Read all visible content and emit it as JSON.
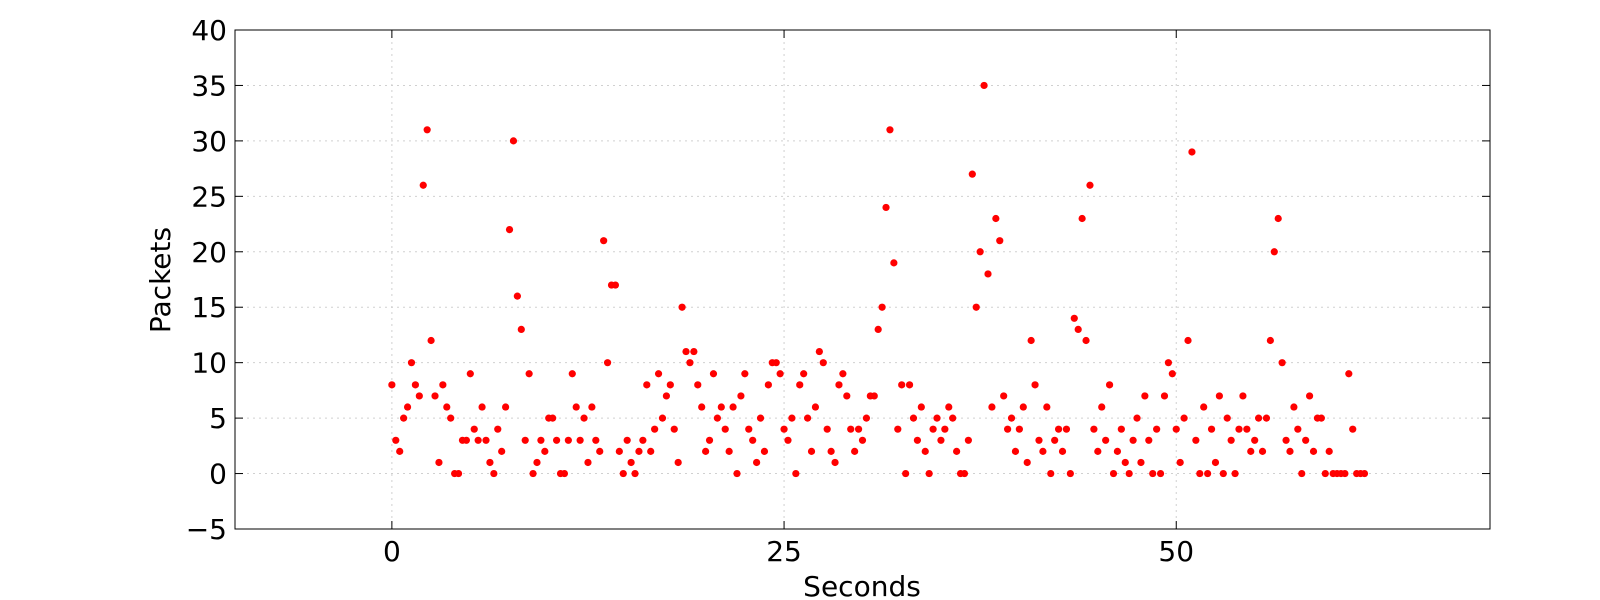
{
  "chart_data": {
    "type": "scatter",
    "x_label": "Seconds",
    "y_label": "Packets",
    "xlim": [
      -10,
      70
    ],
    "xticks": [
      0,
      25,
      50
    ],
    "ylim": [
      -5,
      40
    ],
    "yticks": [
      {
        "value": -5,
        "label": "−5"
      },
      0,
      5,
      10,
      15,
      20,
      25,
      30,
      35,
      40
    ],
    "grid": true,
    "series": [
      {
        "color": "#ff0000",
        "x": [
          0,
          0.25,
          0.5,
          0.75,
          1,
          1.25,
          1.5,
          1.75,
          2,
          2.25,
          2.5,
          2.75,
          3,
          3.25,
          3.5,
          3.75,
          4,
          4.25,
          4.5,
          4.75,
          5,
          5.25,
          5.5,
          5.75,
          6,
          6.25,
          6.5,
          6.75,
          7,
          7.25,
          7.5,
          7.75,
          8,
          8.25,
          8.5,
          8.75,
          9,
          9.25,
          9.5,
          9.75,
          10,
          10.25,
          10.5,
          10.75,
          11,
          11.25,
          11.5,
          11.75,
          12,
          12.25,
          12.5,
          12.75,
          13,
          13.25,
          13.5,
          13.75,
          14,
          14.25,
          14.5,
          14.75,
          15,
          15.25,
          15.5,
          15.75,
          16,
          16.25,
          16.5,
          16.75,
          17,
          17.25,
          17.5,
          17.75,
          18,
          18.25,
          18.5,
          18.75,
          19,
          19.25,
          19.5,
          19.75,
          20,
          20.25,
          20.5,
          20.75,
          21,
          21.25,
          21.5,
          21.75,
          22,
          22.25,
          22.5,
          22.75,
          23,
          23.25,
          23.5,
          23.75,
          24,
          24.25,
          24.5,
          24.75,
          25,
          25.25,
          25.5,
          25.75,
          26,
          26.25,
          26.5,
          26.75,
          27,
          27.25,
          27.5,
          27.75,
          28,
          28.25,
          28.5,
          28.75,
          29,
          29.25,
          29.5,
          29.75,
          30,
          30.25,
          30.5,
          30.75,
          31,
          31.25,
          31.5,
          31.75,
          32,
          32.25,
          32.5,
          32.75,
          33,
          33.25,
          33.5,
          33.75,
          34,
          34.25,
          34.5,
          34.75,
          35,
          35.25,
          35.5,
          35.75,
          36,
          36.25,
          36.5,
          36.75,
          37,
          37.25,
          37.5,
          37.75,
          38,
          38.25,
          38.5,
          38.75,
          39,
          39.25,
          39.5,
          39.75,
          40,
          40.25,
          40.5,
          40.75,
          41,
          41.25,
          41.5,
          41.75,
          42,
          42.25,
          42.5,
          42.75,
          43,
          43.25,
          43.5,
          43.75,
          44,
          44.25,
          44.5,
          44.75,
          45,
          45.25,
          45.5,
          45.75,
          46,
          46.25,
          46.5,
          46.75,
          47,
          47.25,
          47.5,
          47.75,
          48,
          48.25,
          48.5,
          48.75,
          49,
          49.25,
          49.5,
          49.75,
          50,
          50.25,
          50.5,
          50.75,
          51,
          51.25,
          51.5,
          51.75,
          52,
          52.25,
          52.5,
          52.75,
          53,
          53.25,
          53.5,
          53.75,
          54,
          54.25,
          54.5,
          54.75,
          55,
          55.25,
          55.5,
          55.75,
          56,
          56.25,
          56.5,
          56.75,
          57,
          57.25,
          57.5,
          57.75,
          58,
          58.25,
          58.5,
          58.75,
          59,
          59.25,
          59.5,
          59.75,
          60,
          60.25,
          60.5,
          60.75,
          61,
          61.25,
          61.5,
          61.75,
          62
        ],
        "values": [
          8,
          3,
          2,
          5,
          6,
          10,
          8,
          7,
          26,
          31,
          12,
          7,
          1,
          8,
          6,
          5,
          0,
          0,
          3,
          3,
          9,
          4,
          3,
          6,
          3,
          1,
          0,
          4,
          2,
          6,
          22,
          30,
          16,
          13,
          3,
          9,
          0,
          1,
          3,
          2,
          5,
          5,
          3,
          0,
          0,
          3,
          9,
          6,
          3,
          5,
          1,
          6,
          3,
          2,
          21,
          10,
          17,
          17,
          2,
          0,
          3,
          1,
          0,
          2,
          3,
          8,
          2,
          4,
          9,
          5,
          7,
          8,
          4,
          1,
          15,
          11,
          10,
          11,
          8,
          6,
          2,
          3,
          9,
          5,
          6,
          4,
          2,
          6,
          0,
          7,
          9,
          4,
          3,
          1,
          5,
          2,
          8,
          10,
          10,
          9,
          4,
          3,
          5,
          0,
          8,
          9,
          5,
          2,
          6,
          11,
          10,
          4,
          2,
          1,
          8,
          9,
          7,
          4,
          2,
          4,
          3,
          5,
          7,
          7,
          13,
          15,
          24,
          31,
          19,
          4,
          8,
          0,
          8,
          5,
          3,
          6,
          2,
          0,
          4,
          5,
          3,
          4,
          6,
          5,
          2,
          0,
          0,
          3,
          27,
          15,
          20,
          35,
          18,
          6,
          23,
          21,
          7,
          4,
          5,
          2,
          4,
          6,
          1,
          12,
          8,
          3,
          2,
          6,
          0,
          3,
          4,
          2,
          4,
          0,
          14,
          13,
          23,
          12,
          26,
          4,
          2,
          6,
          3,
          8,
          0,
          2,
          4,
          1,
          0,
          3,
          5,
          1,
          7,
          3,
          0,
          4,
          0,
          7,
          10,
          9,
          4,
          1,
          5,
          12,
          29,
          3,
          0,
          6,
          0,
          4,
          1,
          7,
          0,
          5,
          3,
          0,
          4,
          7,
          4,
          2,
          3,
          5,
          2,
          5,
          12,
          20,
          23,
          10,
          3,
          2,
          6,
          4,
          0,
          3,
          7,
          2,
          5,
          5,
          0,
          2,
          0,
          0,
          0,
          0,
          9,
          4,
          0,
          0,
          0
        ]
      }
    ]
  }
}
